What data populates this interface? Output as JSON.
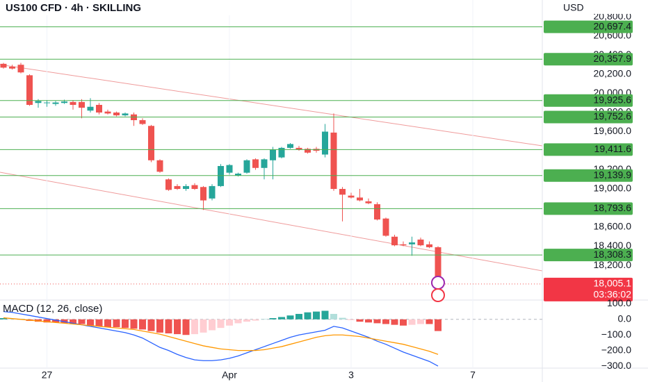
{
  "chart_data": [
    {
      "type": "candlestick",
      "title": "US100 CFD · 4h · SKILLING",
      "y_axis_label": "USD",
      "categories": [
        null,
        null,
        null,
        null,
        null,
        "27",
        null,
        null,
        null,
        null,
        null,
        null,
        null,
        null,
        null,
        null,
        null,
        null,
        null,
        null,
        null,
        null,
        null,
        null,
        null,
        null,
        "Apr",
        null,
        null,
        null,
        null,
        null,
        null,
        null,
        null,
        null,
        null,
        null,
        null,
        null,
        "3",
        null,
        null,
        null,
        null,
        null,
        null,
        null,
        null,
        null,
        null,
        null,
        null,
        null,
        "7"
      ],
      "open": [
        20310,
        20280,
        20300,
        20190,
        19900,
        19900,
        19890,
        19900,
        19910,
        19910,
        19820,
        19880,
        19810,
        19800,
        19770,
        19780,
        19720,
        19660,
        19300,
        19100,
        19030,
        19000,
        19040,
        19020,
        18900,
        19030,
        19170,
        19140,
        19170,
        19310,
        19220,
        19300,
        19330,
        19430,
        19430,
        19420,
        19420,
        19360,
        19590,
        19000,
        18930,
        18910,
        18870,
        18840,
        18690,
        18500,
        18420,
        18420,
        18470,
        18420,
        18390,
        null,
        null,
        null,
        null
      ],
      "high": [
        20320,
        20300,
        20320,
        20200,
        19940,
        19930,
        19920,
        19935,
        19930,
        19940,
        19950,
        19900,
        19830,
        19810,
        19800,
        19800,
        19740,
        19670,
        19310,
        19110,
        19050,
        19050,
        19060,
        19030,
        19050,
        19260,
        19260,
        19170,
        19310,
        19320,
        19320,
        19440,
        19440,
        19480,
        19450,
        19430,
        19440,
        19680,
        19790,
        19020,
        18960,
        19000,
        18900,
        18860,
        18700,
        18520,
        18450,
        18500,
        18490,
        18450,
        18400,
        null,
        null,
        null,
        null
      ],
      "low": [
        20260,
        20250,
        20210,
        19870,
        19850,
        19860,
        19870,
        19890,
        19830,
        19740,
        19800,
        19780,
        19780,
        19760,
        19760,
        19660,
        19670,
        19280,
        19170,
        18980,
        18990,
        18980,
        18990,
        18780,
        18880,
        19020,
        19150,
        19130,
        19160,
        19200,
        19100,
        19100,
        19320,
        19420,
        19400,
        19370,
        19380,
        19330,
        18980,
        18660,
        18900,
        18870,
        18840,
        18670,
        18500,
        18400,
        18400,
        18300,
        18400,
        18380,
        17990,
        null,
        null,
        null,
        null
      ],
      "close": [
        20270,
        20260,
        20220,
        19880,
        19920,
        19905,
        19905,
        19915,
        19880,
        19850,
        19860,
        19800,
        19790,
        19770,
        19790,
        19720,
        19680,
        19300,
        19180,
        18990,
        19000,
        19030,
        19000,
        18880,
        19030,
        19240,
        19250,
        19160,
        19300,
        19220,
        19310,
        19410,
        19430,
        19470,
        19410,
        19380,
        19400,
        19600,
        19000,
        18940,
        18910,
        18880,
        18850,
        18680,
        18510,
        18410,
        18410,
        18440,
        18410,
        18390,
        18005.1,
        null,
        null,
        null,
        null
      ],
      "up_color": "#26a69a",
      "down_color": "#ef5350",
      "ylim": [
        17815,
        20978
      ],
      "yticks": [
        {
          "value": 20800,
          "label": "20,800.0"
        },
        {
          "value": 20600,
          "label": "20,600.0"
        },
        {
          "value": 20400,
          "label": "20,400.0"
        },
        {
          "value": 20200,
          "label": "20,200.0"
        },
        {
          "value": 20000,
          "label": "20,000.0"
        },
        {
          "value": 19800,
          "label": "19,800.0"
        },
        {
          "value": 19600,
          "label": "19,600.0"
        },
        {
          "value": 19200,
          "label": "19,200.0"
        },
        {
          "value": 19000,
          "label": "19,000.0"
        },
        {
          "value": 18600,
          "label": "18,600.0"
        },
        {
          "value": 18400,
          "label": "18,400.0"
        },
        {
          "value": 18200,
          "label": "18,200.0"
        }
      ],
      "levels": [
        {
          "value": 20697.4,
          "label": "20,697.4"
        },
        {
          "value": 20357.9,
          "label": "20,357.9"
        },
        {
          "value": 19925.6,
          "label": "19,925.6"
        },
        {
          "value": 19752.6,
          "label": "19,752.6"
        },
        {
          "value": 19411.6,
          "label": "19,411.6"
        },
        {
          "value": 19139.9,
          "label": "19,139.9"
        },
        {
          "value": 18793.6,
          "label": "18,793.6"
        },
        {
          "value": 18308.3,
          "label": "18,308.3"
        }
      ],
      "level_color": "#4caf50",
      "last_price": {
        "value": 18005.1,
        "label": "18,005.1"
      },
      "countdown": "03:36:02"
    },
    {
      "type": "macd",
      "title": "MACD (12, 26, close)",
      "histogram": [
        8,
        6,
        4,
        -10,
        -15,
        -20,
        -20,
        -25,
        -30,
        -30,
        -40,
        -45,
        -50,
        -50,
        -55,
        -60,
        -65,
        -75,
        -85,
        -90,
        -95,
        -100,
        -95,
        -85,
        -70,
        -55,
        -40,
        -25,
        -15,
        -8,
        3,
        8,
        15,
        25,
        35,
        45,
        50,
        55,
        35,
        10,
        -5,
        -15,
        -20,
        -25,
        -30,
        -35,
        -40,
        -35,
        -30,
        -30,
        -75,
        null,
        null,
        null,
        null
      ],
      "series": [
        {
          "color": "#2962ff",
          "values": [
            50,
            45,
            35,
            25,
            15,
            5,
            -5,
            -15,
            -25,
            -35,
            -45,
            -55,
            -65,
            -75,
            -85,
            -100,
            -120,
            -150,
            -180,
            -200,
            -225,
            -245,
            -260,
            -265,
            -265,
            -260,
            -250,
            -235,
            -215,
            -195,
            -175,
            -155,
            -135,
            -115,
            -100,
            -90,
            -80,
            -70,
            -45,
            -55,
            -75,
            -95,
            -115,
            -140,
            -160,
            -185,
            -210,
            -230,
            -250,
            -270,
            -300,
            null,
            null,
            null,
            null
          ]
        },
        {
          "color": "#ff9800",
          "values": [
            10,
            5,
            0,
            -5,
            -10,
            -15,
            -20,
            -25,
            -30,
            -35,
            -40,
            -45,
            -50,
            -55,
            -60,
            -65,
            -75,
            -85,
            -95,
            -110,
            -125,
            -140,
            -155,
            -170,
            -180,
            -190,
            -195,
            -200,
            -200,
            -200,
            -195,
            -185,
            -175,
            -160,
            -145,
            -130,
            -115,
            -105,
            -100,
            -100,
            -105,
            -110,
            -120,
            -130,
            -140,
            -150,
            -160,
            -175,
            -190,
            -205,
            -225,
            null,
            null,
            null,
            null
          ]
        }
      ],
      "ylim": [
        -313,
        124
      ],
      "yticks": [
        {
          "value": 100,
          "label": "100.0"
        },
        {
          "value": 0,
          "label": "0.0"
        },
        {
          "value": -100,
          "label": "−100.0"
        },
        {
          "value": -200,
          "label": "−200.0"
        },
        {
          "value": -300,
          "label": "−300.0"
        }
      ]
    }
  ]
}
